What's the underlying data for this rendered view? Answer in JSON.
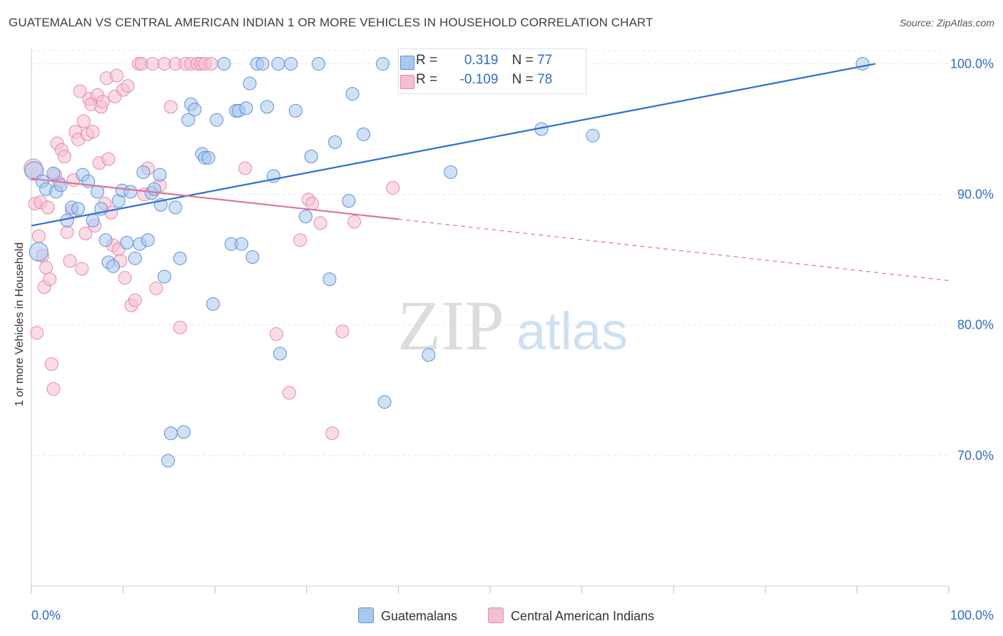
{
  "title": "GUATEMALAN VS CENTRAL AMERICAN INDIAN 1 OR MORE VEHICLES IN HOUSEHOLD CORRELATION CHART",
  "source": "Source: ZipAtlas.com",
  "watermark": {
    "zip": "ZIP",
    "atlas": "atlas"
  },
  "stats": {
    "r_label": "R =",
    "n_label": "N =",
    "series": [
      {
        "r": "0.319",
        "n": "77"
      },
      {
        "r": "-0.109",
        "n": "78"
      }
    ]
  },
  "colors": {
    "blue_fill": "#a9c8ef",
    "blue_stroke": "#5b8fd8",
    "blue_line": "#2e6fd0",
    "pink_fill": "#f5bfd0",
    "pink_stroke": "#e588a7",
    "pink_line": "#e0729a",
    "value_text": "#2f6cc4",
    "grid": "#e6e6e6"
  },
  "chart_data": {
    "type": "scatter",
    "xlabel": "",
    "ylabel": "1 or more Vehicles in Household",
    "xlim": [
      0,
      100
    ],
    "ylim": [
      60,
      101.5
    ],
    "x_tick_labels": [
      "0.0%",
      "100.0%"
    ],
    "y_ticks": [
      70,
      80,
      90,
      100
    ],
    "y_tick_labels": [
      "70.0%",
      "80.0%",
      "90.0%",
      "100.0%"
    ],
    "grid": true,
    "series": [
      {
        "name": "Guatemalans",
        "color": "#a9c8ef",
        "trend": {
          "x": [
            0,
            92
          ],
          "y": [
            87.6,
            100.0
          ],
          "dashed_to": null
        },
        "points": [
          [
            0.3,
            91.8
          ],
          [
            0.8,
            85.6
          ],
          [
            1.2,
            91.0
          ],
          [
            1.6,
            90.4
          ],
          [
            2.4,
            91.6
          ],
          [
            2.7,
            90.2
          ],
          [
            3.2,
            90.7
          ],
          [
            3.9,
            88.0
          ],
          [
            4.4,
            89.0
          ],
          [
            5.1,
            88.9
          ],
          [
            5.6,
            91.5
          ],
          [
            6.2,
            91.0
          ],
          [
            6.7,
            88.0
          ],
          [
            7.2,
            90.2
          ],
          [
            7.6,
            88.9
          ],
          [
            8.1,
            86.5
          ],
          [
            8.4,
            84.8
          ],
          [
            8.9,
            84.5
          ],
          [
            9.5,
            89.5
          ],
          [
            9.9,
            90.3
          ],
          [
            10.4,
            86.3
          ],
          [
            10.8,
            90.2
          ],
          [
            11.3,
            85.1
          ],
          [
            11.8,
            86.2
          ],
          [
            12.2,
            91.7
          ],
          [
            12.7,
            86.5
          ],
          [
            13.1,
            90.1
          ],
          [
            13.4,
            90.4
          ],
          [
            14.1,
            89.2
          ],
          [
            14.5,
            83.7
          ],
          [
            14.9,
            69.6
          ],
          [
            15.2,
            71.7
          ],
          [
            15.7,
            89.0
          ],
          [
            16.2,
            85.1
          ],
          [
            16.6,
            71.8
          ],
          [
            17.1,
            95.7
          ],
          [
            17.4,
            96.9
          ],
          [
            17.8,
            96.5
          ],
          [
            18.6,
            93.1
          ],
          [
            18.9,
            92.8
          ],
          [
            19.3,
            92.8
          ],
          [
            19.8,
            81.6
          ],
          [
            20.2,
            95.7
          ],
          [
            21.0,
            100.0
          ],
          [
            21.8,
            86.2
          ],
          [
            22.3,
            96.4
          ],
          [
            22.6,
            96.4
          ],
          [
            22.9,
            86.2
          ],
          [
            23.4,
            96.6
          ],
          [
            23.8,
            98.5
          ],
          [
            24.1,
            85.2
          ],
          [
            24.6,
            100.0
          ],
          [
            25.2,
            100.0
          ],
          [
            25.7,
            96.7
          ],
          [
            26.4,
            91.4
          ],
          [
            26.9,
            100.0
          ],
          [
            27.1,
            77.8
          ],
          [
            28.3,
            100.0
          ],
          [
            28.8,
            96.4
          ],
          [
            29.9,
            88.3
          ],
          [
            30.5,
            92.9
          ],
          [
            31.3,
            100.0
          ],
          [
            32.5,
            83.5
          ],
          [
            33.1,
            94.0
          ],
          [
            34.6,
            89.5
          ],
          [
            35.0,
            97.7
          ],
          [
            36.2,
            94.6
          ],
          [
            38.3,
            100.0
          ],
          [
            38.5,
            74.1
          ],
          [
            43.3,
            77.7
          ],
          [
            45.7,
            91.7
          ],
          [
            52.2,
            100.0
          ],
          [
            55.6,
            95.0
          ],
          [
            59.5,
            100.0
          ],
          [
            61.2,
            94.5
          ],
          [
            90.6,
            100.0
          ],
          [
            14.0,
            91.5
          ]
        ]
      },
      {
        "name": "Central American Indians",
        "color": "#f5bfd0",
        "trend": {
          "x": [
            0,
            40
          ],
          "y": [
            91.2,
            88.1
          ],
          "dashed_to": [
            100,
            83.4
          ]
        },
        "points": [
          [
            0.2,
            92.0
          ],
          [
            0.4,
            89.3
          ],
          [
            0.6,
            79.4
          ],
          [
            0.8,
            86.8
          ],
          [
            1.0,
            89.4
          ],
          [
            1.2,
            85.3
          ],
          [
            1.4,
            82.9
          ],
          [
            1.6,
            84.4
          ],
          [
            1.8,
            89.0
          ],
          [
            2.0,
            83.5
          ],
          [
            2.2,
            77.0
          ],
          [
            2.4,
            75.1
          ],
          [
            2.6,
            91.5
          ],
          [
            2.8,
            93.9
          ],
          [
            3.0,
            90.9
          ],
          [
            3.3,
            93.4
          ],
          [
            3.6,
            92.9
          ],
          [
            3.9,
            87.1
          ],
          [
            4.2,
            84.9
          ],
          [
            4.4,
            88.7
          ],
          [
            4.6,
            91.1
          ],
          [
            4.8,
            94.8
          ],
          [
            5.1,
            94.2
          ],
          [
            5.3,
            97.9
          ],
          [
            5.5,
            84.3
          ],
          [
            5.7,
            95.6
          ],
          [
            5.9,
            87.0
          ],
          [
            6.1,
            94.6
          ],
          [
            6.3,
            97.3
          ],
          [
            6.5,
            96.9
          ],
          [
            6.7,
            94.8
          ],
          [
            6.9,
            87.6
          ],
          [
            7.2,
            97.6
          ],
          [
            7.4,
            92.4
          ],
          [
            7.6,
            96.7
          ],
          [
            7.8,
            97.1
          ],
          [
            8.0,
            89.3
          ],
          [
            8.2,
            98.9
          ],
          [
            8.4,
            92.7
          ],
          [
            8.7,
            88.6
          ],
          [
            8.9,
            86.1
          ],
          [
            9.1,
            97.5
          ],
          [
            9.3,
            99.1
          ],
          [
            9.5,
            85.8
          ],
          [
            9.7,
            84.9
          ],
          [
            10.0,
            98.0
          ],
          [
            10.2,
            83.6
          ],
          [
            10.5,
            98.3
          ],
          [
            10.9,
            81.5
          ],
          [
            11.3,
            81.9
          ],
          [
            11.7,
            100.0
          ],
          [
            12.0,
            100.0
          ],
          [
            12.3,
            90.0
          ],
          [
            12.7,
            92.0
          ],
          [
            13.2,
            100.0
          ],
          [
            13.6,
            82.8
          ],
          [
            14.0,
            90.7
          ],
          [
            14.5,
            100.0
          ],
          [
            15.2,
            96.7
          ],
          [
            15.7,
            100.0
          ],
          [
            16.2,
            79.8
          ],
          [
            16.8,
            100.0
          ],
          [
            17.4,
            100.0
          ],
          [
            18.1,
            100.0
          ],
          [
            18.5,
            100.0
          ],
          [
            18.9,
            100.0
          ],
          [
            19.6,
            100.0
          ],
          [
            23.3,
            92.0
          ],
          [
            26.7,
            79.3
          ],
          [
            28.1,
            74.8
          ],
          [
            29.3,
            86.5
          ],
          [
            30.2,
            89.6
          ],
          [
            30.6,
            89.3
          ],
          [
            31.5,
            87.8
          ],
          [
            32.8,
            71.7
          ],
          [
            33.9,
            79.5
          ],
          [
            35.2,
            87.9
          ],
          [
            39.4,
            90.5
          ]
        ]
      }
    ]
  }
}
